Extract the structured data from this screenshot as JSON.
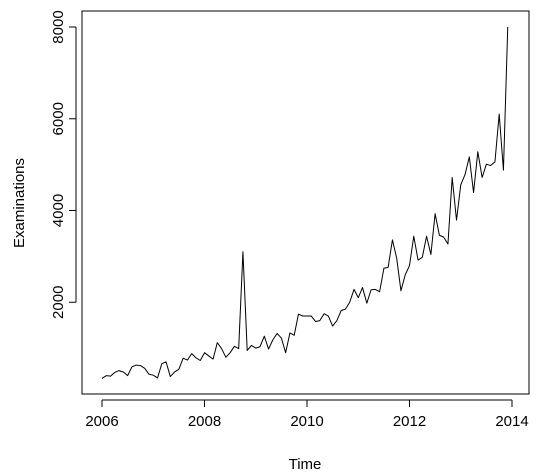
{
  "chart_data": {
    "type": "line",
    "xlabel": "Time",
    "ylabel": "Examinations",
    "xlim": [
      2006,
      2014
    ],
    "ylim": [
      0,
      8000
    ],
    "x_ticks": [
      2006,
      2008,
      2010,
      2012,
      2014
    ],
    "y_ticks": [
      2000,
      4000,
      6000,
      8000
    ],
    "x_tick_labels": [
      "2006",
      "2008",
      "2010",
      "2012",
      "2014"
    ],
    "y_tick_labels": [
      "2000",
      "4000",
      "6000",
      "8000"
    ],
    "grid": false,
    "series": [
      {
        "values": [
          [
            2006.0,
            340
          ],
          [
            2006.083,
            400
          ],
          [
            2006.167,
            390
          ],
          [
            2006.25,
            470
          ],
          [
            2006.333,
            510
          ],
          [
            2006.417,
            480
          ],
          [
            2006.5,
            400
          ],
          [
            2006.583,
            590
          ],
          [
            2006.667,
            630
          ],
          [
            2006.75,
            620
          ],
          [
            2006.833,
            560
          ],
          [
            2006.917,
            430
          ],
          [
            2007.0,
            410
          ],
          [
            2007.083,
            350
          ],
          [
            2007.167,
            660
          ],
          [
            2007.25,
            700
          ],
          [
            2007.333,
            380
          ],
          [
            2007.417,
            480
          ],
          [
            2007.5,
            540
          ],
          [
            2007.583,
            780
          ],
          [
            2007.667,
            740
          ],
          [
            2007.75,
            880
          ],
          [
            2007.833,
            790
          ],
          [
            2007.917,
            730
          ],
          [
            2008.0,
            900
          ],
          [
            2008.083,
            830
          ],
          [
            2008.167,
            760
          ],
          [
            2008.25,
            1120
          ],
          [
            2008.333,
            990
          ],
          [
            2008.417,
            800
          ],
          [
            2008.5,
            900
          ],
          [
            2008.583,
            1040
          ],
          [
            2008.667,
            990
          ],
          [
            2008.75,
            3100
          ],
          [
            2008.833,
            950
          ],
          [
            2008.917,
            1060
          ],
          [
            2009.0,
            1000
          ],
          [
            2009.083,
            1030
          ],
          [
            2009.167,
            1260
          ],
          [
            2009.25,
            980
          ],
          [
            2009.333,
            1180
          ],
          [
            2009.417,
            1320
          ],
          [
            2009.5,
            1220
          ],
          [
            2009.583,
            900
          ],
          [
            2009.667,
            1330
          ],
          [
            2009.75,
            1280
          ],
          [
            2009.833,
            1740
          ],
          [
            2009.917,
            1700
          ],
          [
            2010.0,
            1700
          ],
          [
            2010.083,
            1700
          ],
          [
            2010.167,
            1580
          ],
          [
            2010.25,
            1600
          ],
          [
            2010.333,
            1750
          ],
          [
            2010.417,
            1700
          ],
          [
            2010.5,
            1480
          ],
          [
            2010.583,
            1600
          ],
          [
            2010.667,
            1820
          ],
          [
            2010.75,
            1850
          ],
          [
            2010.833,
            2000
          ],
          [
            2010.917,
            2280
          ],
          [
            2011.0,
            2100
          ],
          [
            2011.083,
            2320
          ],
          [
            2011.167,
            1980
          ],
          [
            2011.25,
            2270
          ],
          [
            2011.333,
            2280
          ],
          [
            2011.417,
            2230
          ],
          [
            2011.5,
            2740
          ],
          [
            2011.583,
            2760
          ],
          [
            2011.667,
            3360
          ],
          [
            2011.75,
            2960
          ],
          [
            2011.833,
            2250
          ],
          [
            2011.917,
            2600
          ],
          [
            2012.0,
            2800
          ],
          [
            2012.083,
            3440
          ],
          [
            2012.167,
            2920
          ],
          [
            2012.25,
            2980
          ],
          [
            2012.333,
            3440
          ],
          [
            2012.417,
            3040
          ],
          [
            2012.5,
            3930
          ],
          [
            2012.583,
            3460
          ],
          [
            2012.667,
            3420
          ],
          [
            2012.75,
            3270
          ],
          [
            2012.833,
            4720
          ],
          [
            2012.917,
            3790
          ],
          [
            2013.0,
            4560
          ],
          [
            2013.083,
            4780
          ],
          [
            2013.167,
            5170
          ],
          [
            2013.25,
            4390
          ],
          [
            2013.333,
            5280
          ],
          [
            2013.417,
            4720
          ],
          [
            2013.5,
            5010
          ],
          [
            2013.583,
            4980
          ],
          [
            2013.667,
            5060
          ],
          [
            2013.75,
            6100
          ],
          [
            2013.833,
            4880
          ],
          [
            2013.917,
            8000
          ]
        ]
      }
    ]
  }
}
